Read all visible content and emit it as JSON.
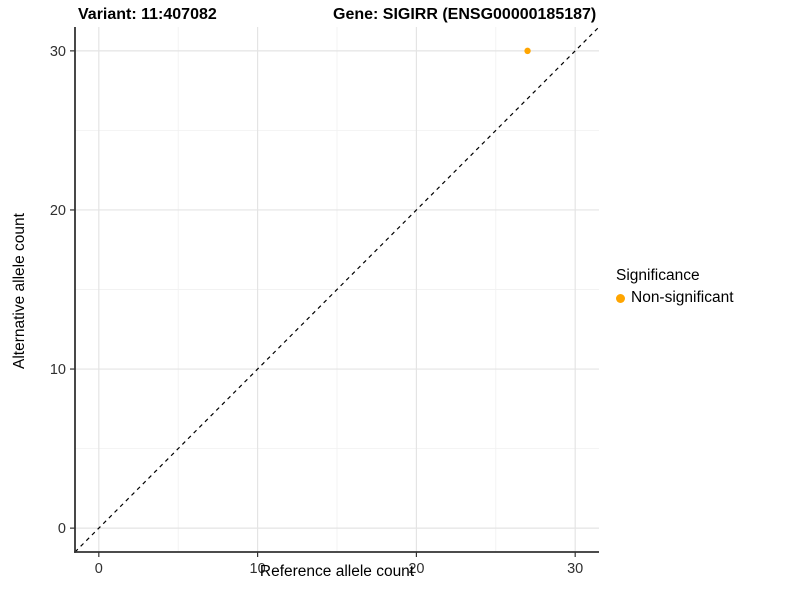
{
  "titles": {
    "variant": "Variant: 11:407082",
    "gene": "Gene: SIGIRR (ENSG00000185187)"
  },
  "axes": {
    "x_label": "Reference allele count",
    "y_label": "Alternative allele count"
  },
  "legend": {
    "title": "Significance",
    "items": [
      {
        "label": "Non-significant",
        "color": "#FFA500"
      }
    ]
  },
  "colors": {
    "point": "#FFA500",
    "grid_major": "#E4E4E4",
    "grid_minor": "#F2F2F2",
    "axis_line": "#333333",
    "reference_line": "#000000",
    "tick_text": "#303030"
  },
  "chart_data": {
    "type": "scatter",
    "title": "Variant: 11:407082 / Gene: SIGIRR (ENSG00000185187)",
    "xlabel": "Reference allele count",
    "ylabel": "Alternative allele count",
    "xlim": [
      -1.5,
      31.5
    ],
    "ylim": [
      -1.5,
      31.5
    ],
    "x_ticks": [
      0,
      10,
      20,
      30
    ],
    "y_ticks": [
      0,
      10,
      20,
      30
    ],
    "x_minor_ticks": [
      5,
      15,
      25
    ],
    "y_minor_ticks": [
      5,
      15,
      25
    ],
    "grid": "on",
    "legend_position": "right",
    "series": [
      {
        "name": "Non-significant",
        "color": "#FFA500",
        "points": [
          {
            "x": 27,
            "y": 30
          }
        ]
      }
    ],
    "reference_line": {
      "type": "identity",
      "slope": 1,
      "intercept": 0,
      "style": "dashed",
      "color": "#000000"
    }
  }
}
